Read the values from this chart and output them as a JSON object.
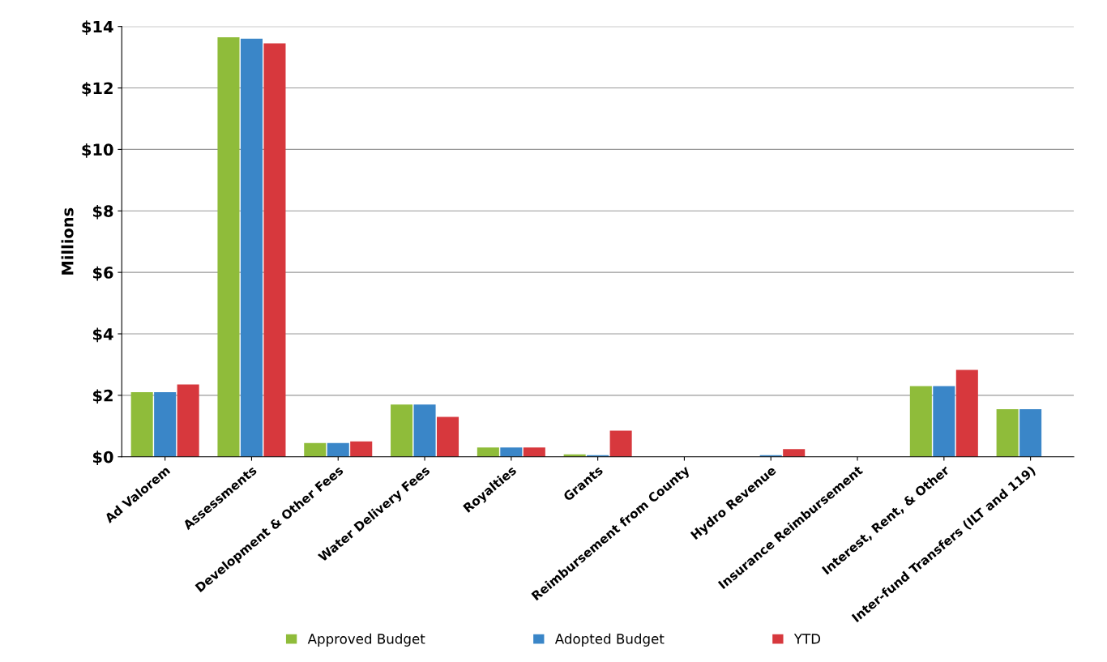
{
  "chart_data": {
    "type": "bar",
    "ylabel": "Millions",
    "categories": [
      "Ad Valorem",
      "Assessments",
      "Development & Other Fees",
      "Water Delivery Fees",
      "Royalties",
      "Grants",
      "Reimbursement from County",
      "Hydro Revenue",
      "Insurance Reimbursement",
      "Interest, Rent, & Other",
      "Inter-fund Transfers (ILT and 119)"
    ],
    "series": [
      {
        "name": "Approved Budget",
        "color": "#8fbc3a",
        "values": [
          2.1,
          13.65,
          0.45,
          1.7,
          0.3,
          0.08,
          0,
          0,
          0,
          2.3,
          1.55
        ]
      },
      {
        "name": "Adopted Budget",
        "color": "#3a86c8",
        "values": [
          2.1,
          13.6,
          0.45,
          1.7,
          0.3,
          0.05,
          0,
          0.05,
          0,
          2.3,
          1.55
        ]
      },
      {
        "name": "YTD",
        "color": "#d7383d",
        "values": [
          2.35,
          13.45,
          0.5,
          1.3,
          0.3,
          0.85,
          0,
          0.25,
          0,
          2.83,
          0
        ]
      }
    ],
    "ylim": [
      0,
      14
    ],
    "yticks": [
      {
        "value": 0,
        "label": "$0"
      },
      {
        "value": 2,
        "label": "$2"
      },
      {
        "value": 4,
        "label": "$4"
      },
      {
        "value": 6,
        "label": "$6"
      },
      {
        "value": 8,
        "label": "$8"
      },
      {
        "value": 10,
        "label": "$10"
      },
      {
        "value": 12,
        "label": "$12"
      },
      {
        "value": 14,
        "label": "$14"
      }
    ],
    "grid": "y",
    "legend": "bottom"
  }
}
